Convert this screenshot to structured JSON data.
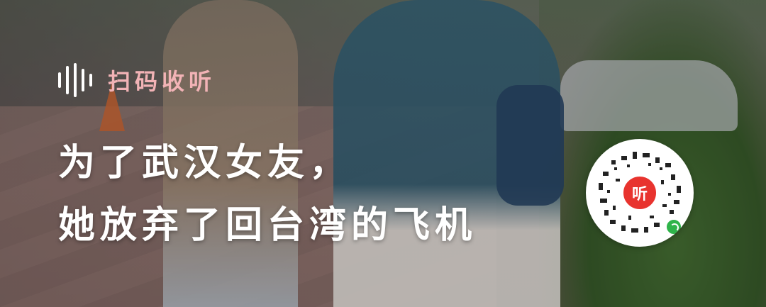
{
  "listen": {
    "label": "扫码收听",
    "icon": "waveform-icon",
    "color": "#f2b3b6"
  },
  "headline": {
    "line1": "为了武汉女友，",
    "line2": "她放弃了回台湾的飞机"
  },
  "qr": {
    "logo_text": "听",
    "logo_color": "#e8332e",
    "badge_icon": "miniprogram-icon"
  }
}
